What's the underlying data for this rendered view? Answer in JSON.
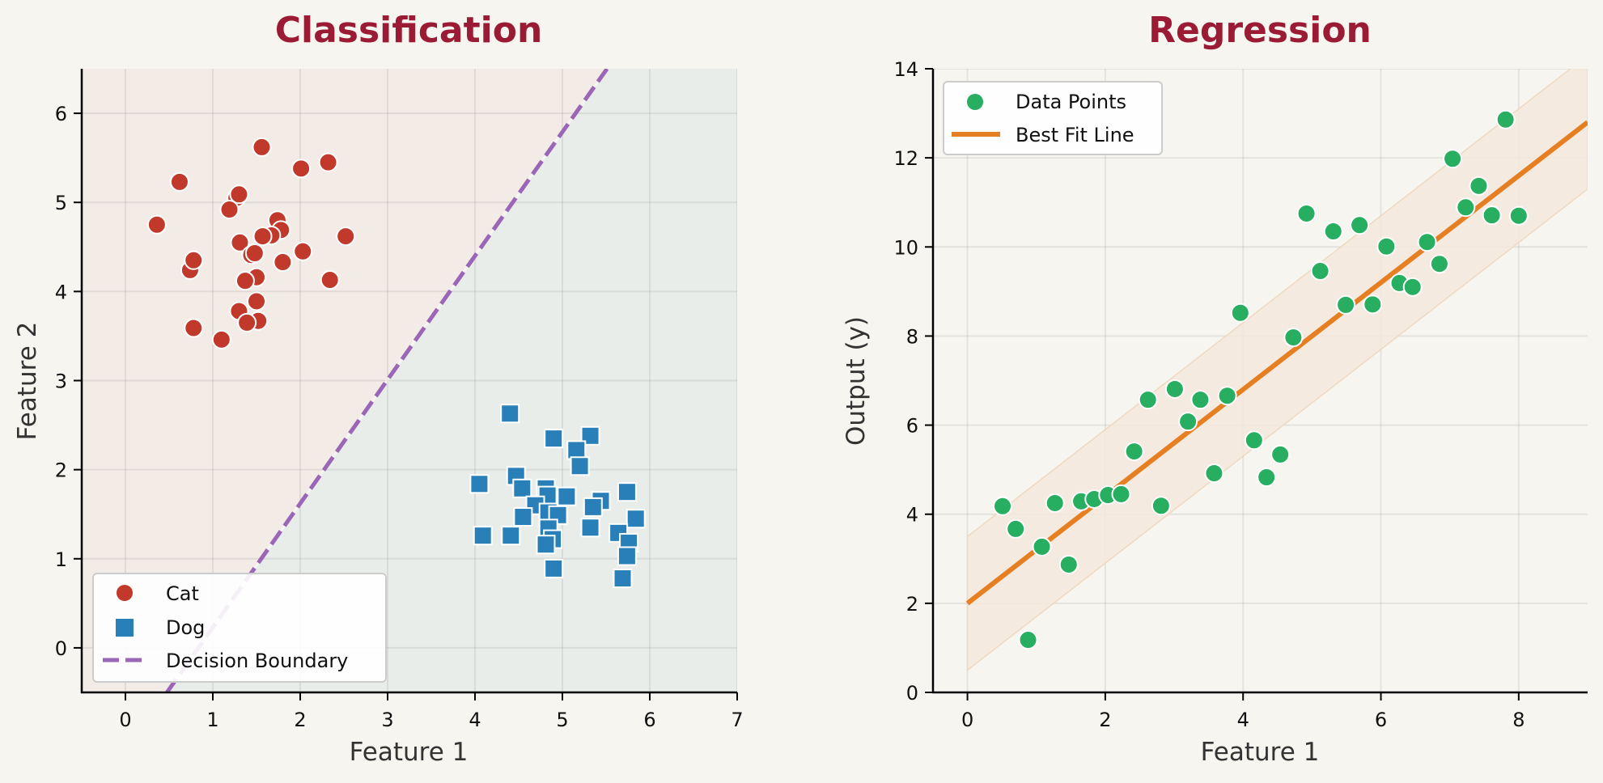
{
  "colors": {
    "background": "#f6f5f0",
    "title": "#9b1b35",
    "cat": "#c0392b",
    "dog": "#2980b9",
    "boundary": "#9b66b8",
    "cat_region": "#f2ebe6",
    "dog_region": "#e9ede9",
    "points": "#27ae60",
    "fit_line": "#e67e22",
    "band": "#f3e8dc"
  },
  "chart_data": [
    {
      "type": "scatter",
      "title": "Classification",
      "xlabel": "Feature 1",
      "ylabel": "Feature 2",
      "xlim": [
        -0.5,
        7
      ],
      "ylim": [
        -0.5,
        6.5
      ],
      "xticks": [
        0,
        1,
        2,
        3,
        4,
        5,
        6,
        7
      ],
      "yticks": [
        0,
        1,
        2,
        3,
        4,
        5,
        6
      ],
      "grid": true,
      "legend_position": "bottom-left",
      "legend": [
        "Cat",
        "Dog",
        "Decision Boundary"
      ],
      "series": [
        {
          "name": "Cat",
          "marker": "circle",
          "points": [
            [
              1.56,
              5.62
            ],
            [
              2.01,
              5.38
            ],
            [
              2.32,
              5.45
            ],
            [
              0.62,
              5.23
            ],
            [
              1.27,
              5.05
            ],
            [
              1.3,
              5.09
            ],
            [
              1.19,
              4.92
            ],
            [
              0.36,
              4.75
            ],
            [
              1.74,
              4.8
            ],
            [
              1.78,
              4.69
            ],
            [
              1.67,
              4.63
            ],
            [
              1.57,
              4.62
            ],
            [
              2.52,
              4.62
            ],
            [
              1.31,
              4.55
            ],
            [
              2.03,
              4.45
            ],
            [
              1.44,
              4.41
            ],
            [
              1.48,
              4.43
            ],
            [
              0.74,
              4.24
            ],
            [
              0.78,
              4.35
            ],
            [
              1.8,
              4.33
            ],
            [
              1.5,
              4.16
            ],
            [
              1.37,
              4.12
            ],
            [
              2.34,
              4.13
            ],
            [
              1.5,
              3.89
            ],
            [
              1.3,
              3.78
            ],
            [
              1.52,
              3.67
            ],
            [
              1.39,
              3.65
            ],
            [
              0.78,
              3.59
            ],
            [
              1.1,
              3.46
            ]
          ]
        },
        {
          "name": "Dog",
          "marker": "square",
          "points": [
            [
              4.4,
              2.63
            ],
            [
              4.9,
              2.35
            ],
            [
              5.32,
              2.38
            ],
            [
              5.16,
              2.22
            ],
            [
              5.2,
              2.04
            ],
            [
              4.05,
              1.84
            ],
            [
              4.47,
              1.93
            ],
            [
              4.54,
              1.79
            ],
            [
              4.81,
              1.79
            ],
            [
              4.83,
              1.71
            ],
            [
              5.05,
              1.7
            ],
            [
              4.69,
              1.6
            ],
            [
              5.44,
              1.65
            ],
            [
              5.35,
              1.58
            ],
            [
              5.74,
              1.75
            ],
            [
              4.84,
              1.52
            ],
            [
              4.95,
              1.49
            ],
            [
              4.55,
              1.47
            ],
            [
              5.84,
              1.45
            ],
            [
              5.32,
              1.35
            ],
            [
              4.84,
              1.34
            ],
            [
              4.09,
              1.26
            ],
            [
              4.41,
              1.26
            ],
            [
              5.64,
              1.29
            ],
            [
              5.76,
              1.18
            ],
            [
              4.89,
              1.22
            ],
            [
              4.81,
              1.16
            ],
            [
              5.74,
              1.03
            ],
            [
              4.9,
              0.89
            ],
            [
              5.69,
              0.78
            ]
          ]
        }
      ],
      "boundary": {
        "name": "Decision Boundary",
        "slope": 1.39,
        "intercept": -1.16,
        "style": "dashed"
      }
    },
    {
      "type": "scatter",
      "title": "Regression",
      "xlabel": "Feature 1",
      "ylabel": "Output (y)",
      "xlim": [
        -0.5,
        9
      ],
      "ylim": [
        0,
        14
      ],
      "xticks": [
        0,
        2,
        4,
        6,
        8
      ],
      "yticks": [
        0,
        2,
        4,
        6,
        8,
        10,
        12,
        14
      ],
      "grid": true,
      "legend_position": "top-left",
      "legend": [
        "Data Points",
        "Best Fit Line"
      ],
      "series": [
        {
          "name": "Data Points",
          "marker": "circle",
          "points": [
            [
              0.51,
              4.18
            ],
            [
              0.7,
              3.67
            ],
            [
              0.88,
              1.18
            ],
            [
              1.08,
              3.27
            ],
            [
              1.27,
              4.25
            ],
            [
              1.47,
              2.87
            ],
            [
              1.65,
              4.29
            ],
            [
              1.84,
              4.34
            ],
            [
              2.04,
              4.43
            ],
            [
              2.23,
              4.45
            ],
            [
              2.42,
              5.41
            ],
            [
              2.62,
              6.57
            ],
            [
              2.81,
              4.19
            ],
            [
              3.01,
              6.81
            ],
            [
              3.2,
              6.08
            ],
            [
              3.38,
              6.57
            ],
            [
              3.58,
              4.92
            ],
            [
              3.77,
              6.66
            ],
            [
              3.96,
              8.52
            ],
            [
              4.16,
              5.66
            ],
            [
              4.34,
              4.83
            ],
            [
              4.54,
              5.34
            ],
            [
              4.73,
              7.97
            ],
            [
              4.92,
              10.75
            ],
            [
              5.12,
              9.46
            ],
            [
              5.31,
              10.35
            ],
            [
              5.49,
              8.7
            ],
            [
              5.69,
              10.49
            ],
            [
              5.88,
              8.71
            ],
            [
              6.08,
              10.01
            ],
            [
              6.27,
              9.19
            ],
            [
              6.46,
              9.1
            ],
            [
              6.67,
              10.11
            ],
            [
              6.85,
              9.62
            ],
            [
              7.04,
              11.98
            ],
            [
              7.23,
              10.89
            ],
            [
              7.42,
              11.37
            ],
            [
              7.61,
              10.71
            ],
            [
              7.81,
              12.86
            ],
            [
              8.0,
              10.7
            ]
          ]
        }
      ],
      "fit": {
        "name": "Best Fit Line",
        "slope": 1.2,
        "intercept": 2.0,
        "x_range": [
          0,
          9
        ],
        "band": 1.5
      }
    }
  ]
}
